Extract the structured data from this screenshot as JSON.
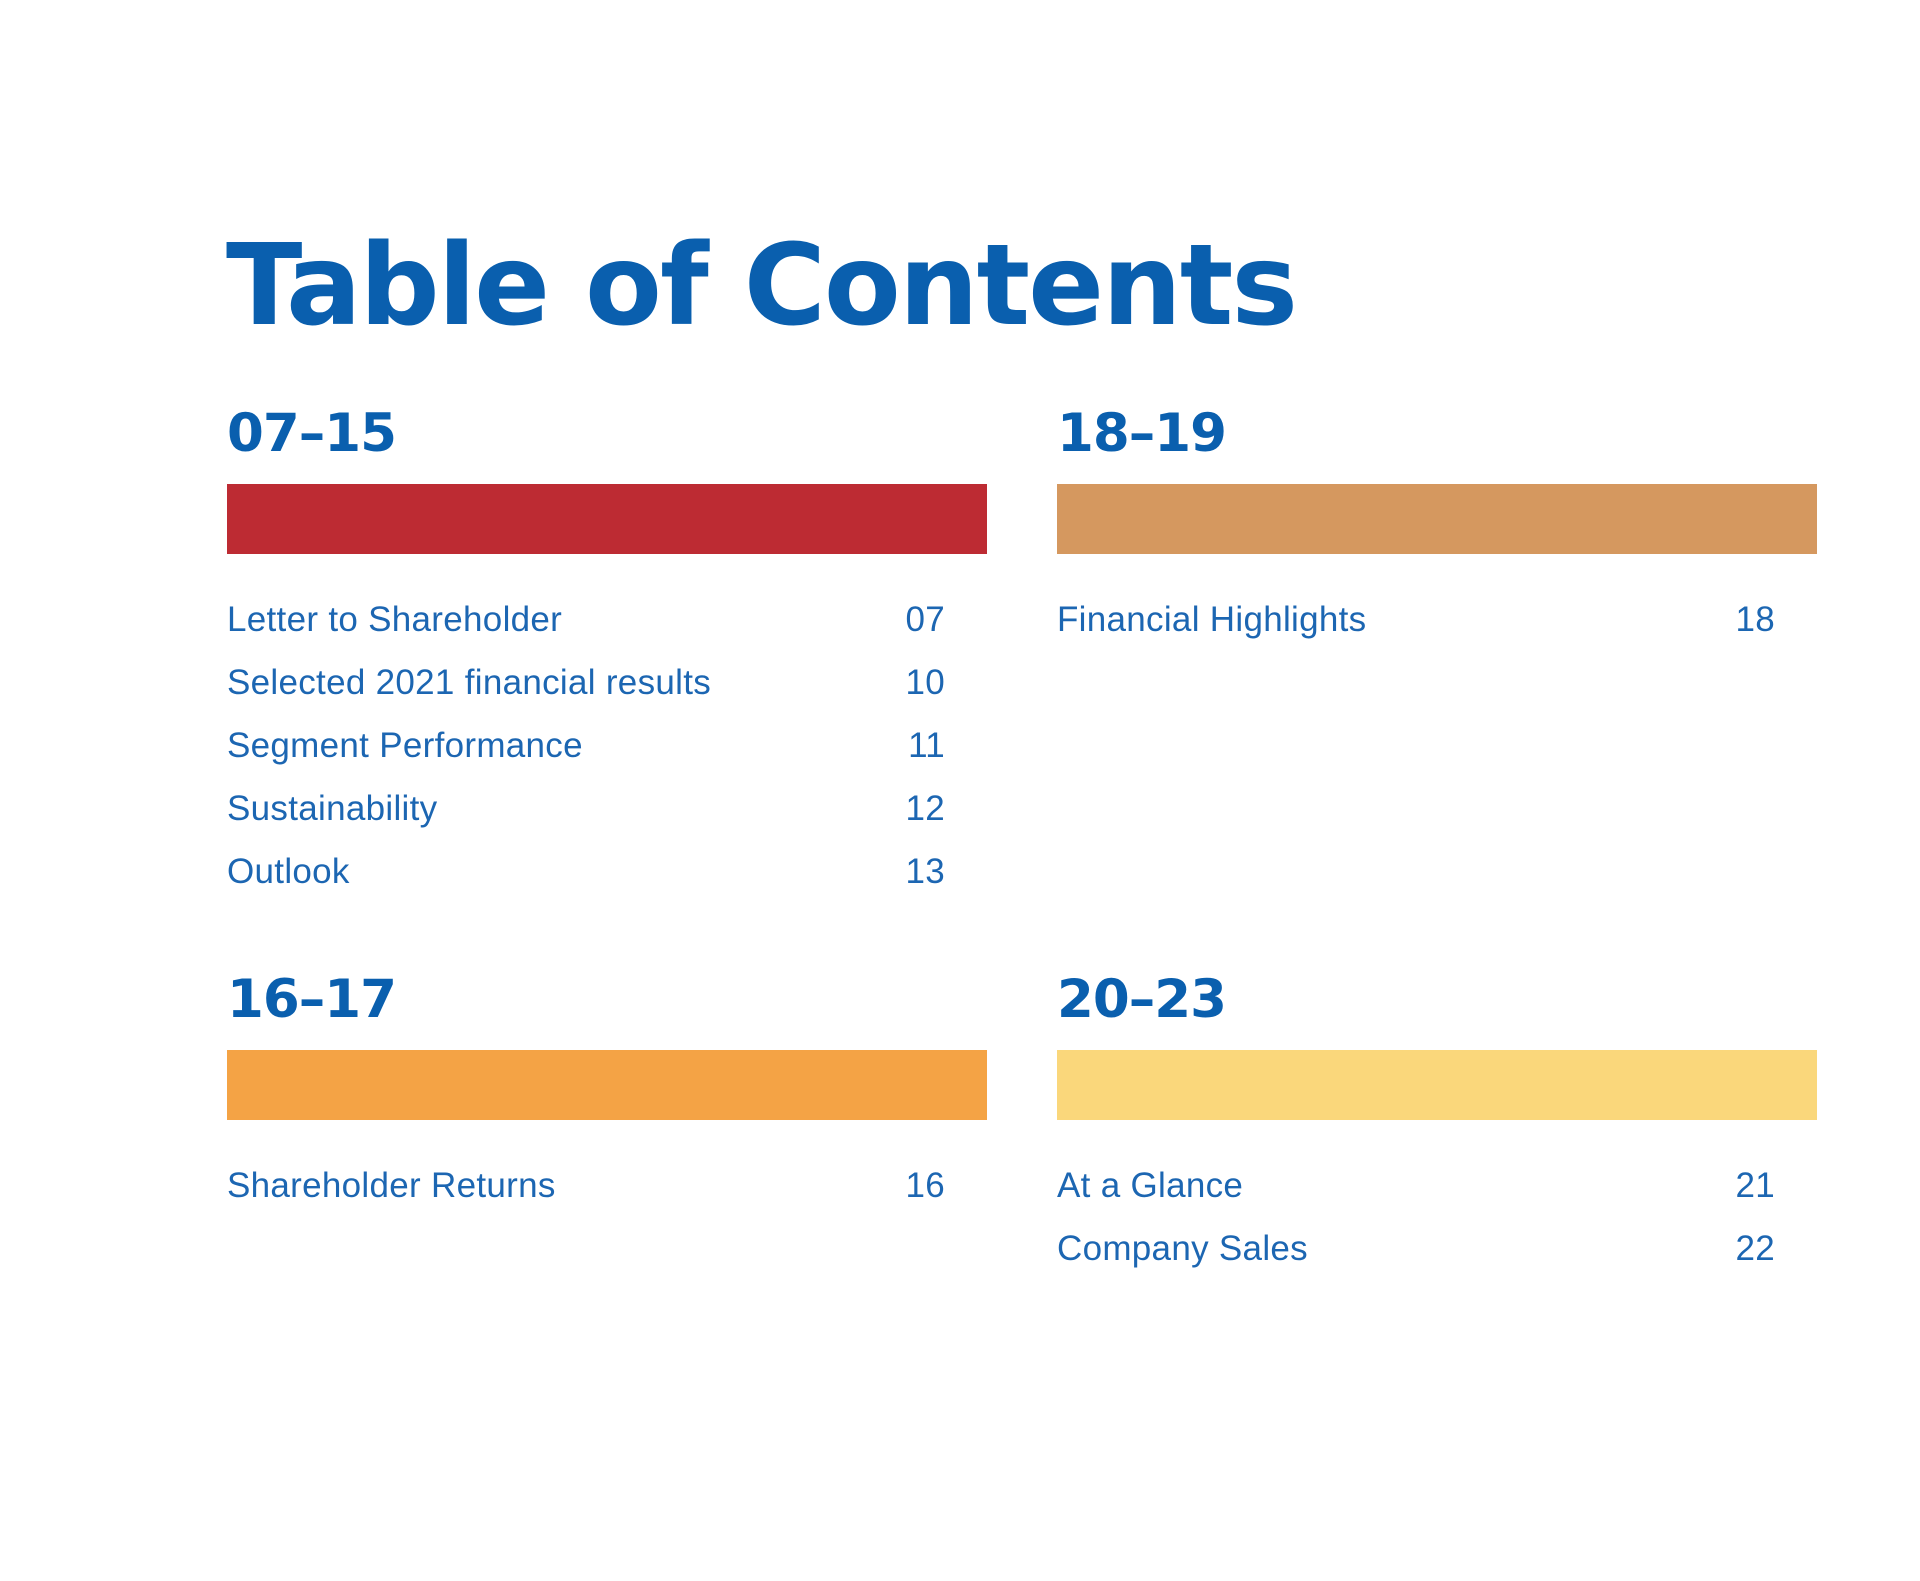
{
  "title": "Table of Contents",
  "sections": [
    {
      "range": "07–15",
      "color": "#bd2b33",
      "entries": [
        {
          "title": "Letter to Shareholder",
          "page": "07"
        },
        {
          "title": "Selected 2021 financial results",
          "page": "10"
        },
        {
          "title": "Segment Performance",
          "page": "11"
        },
        {
          "title": "Sustainability",
          "page": "12"
        },
        {
          "title": "Outlook",
          "page": "13"
        }
      ]
    },
    {
      "range": "18–19",
      "color": "#d5985f",
      "entries": [
        {
          "title": "Financial Highlights",
          "page": "18"
        }
      ]
    },
    {
      "range": "16–17",
      "color": "#f4a345",
      "entries": [
        {
          "title": "Shareholder Returns",
          "page": "16"
        }
      ]
    },
    {
      "range": "20–23",
      "color": "#fad77b",
      "entries": [
        {
          "title": "At a Glance",
          "page": "21"
        },
        {
          "title": "Company Sales",
          "page": "22"
        }
      ]
    }
  ]
}
